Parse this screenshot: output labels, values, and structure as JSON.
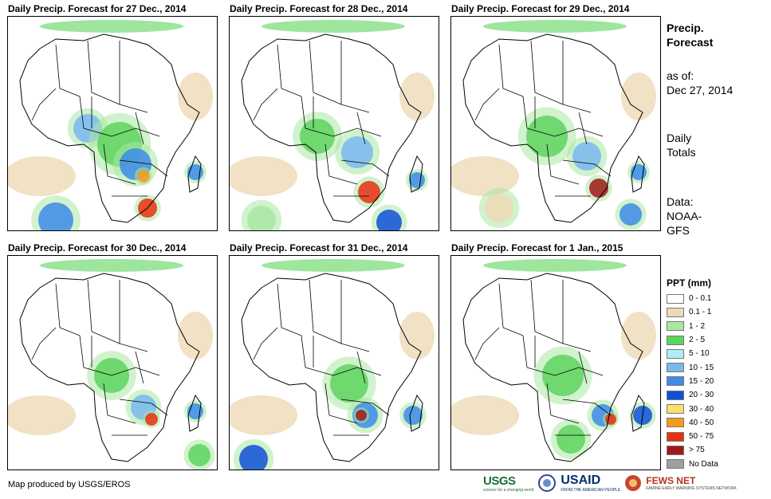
{
  "panels": [
    {
      "title": "Daily Precip. Forecast for 27 Dec., 2014"
    },
    {
      "title": "Daily Precip. Forecast for 28 Dec., 2014"
    },
    {
      "title": "Daily Precip. Forecast for 29 Dec., 2014"
    },
    {
      "title": "Daily Precip. Forecast for 30 Dec., 2014"
    },
    {
      "title": "Daily Precip. Forecast for 31 Dec., 2014"
    },
    {
      "title": "Daily Precip. Forecast for 1 Jan., 2015"
    }
  ],
  "sidebar": {
    "heading_line1": "Precip.",
    "heading_line2": "Forecast",
    "asof_label": "as of:",
    "asof_date": "Dec 27, 2014",
    "totals_line1": "Daily",
    "totals_line2": "Totals",
    "data_line1": "Data:",
    "data_line2": "NOAA-",
    "data_line3": "GFS"
  },
  "legend": {
    "title": "PPT (mm)",
    "items": [
      {
        "label": "0 - 0.1",
        "color": "#ffffff"
      },
      {
        "label": "0.1 - 1",
        "color": "#eed9b6"
      },
      {
        "label": "1 - 2",
        "color": "#a9e8a3"
      },
      {
        "label": "2 - 5",
        "color": "#5ed35e"
      },
      {
        "label": "5 - 10",
        "color": "#aeeef6"
      },
      {
        "label": "10 - 15",
        "color": "#7ab8f0"
      },
      {
        "label": "15 - 20",
        "color": "#3c8ce8"
      },
      {
        "label": "20 - 30",
        "color": "#1050d8"
      },
      {
        "label": "30 - 40",
        "color": "#f8e070"
      },
      {
        "label": "40 - 50",
        "color": "#f59a20"
      },
      {
        "label": "50 - 75",
        "color": "#e83010"
      },
      {
        "label": "> 75",
        "color": "#a01818"
      },
      {
        "label": "No Data",
        "color": "#a0a0a0"
      }
    ]
  },
  "footer": {
    "credit": "Map produced by USGS/EROS",
    "usgs_text": "USGS",
    "usgs_tagline": "science for a changing world",
    "usaid_text": "USAID",
    "usaid_tagline": "FROM THE AMERICAN PEOPLE",
    "fews_text": "FEWS NET",
    "fews_tagline": "FAMINE EARLY WARNING SYSTEMS NETWORK"
  }
}
